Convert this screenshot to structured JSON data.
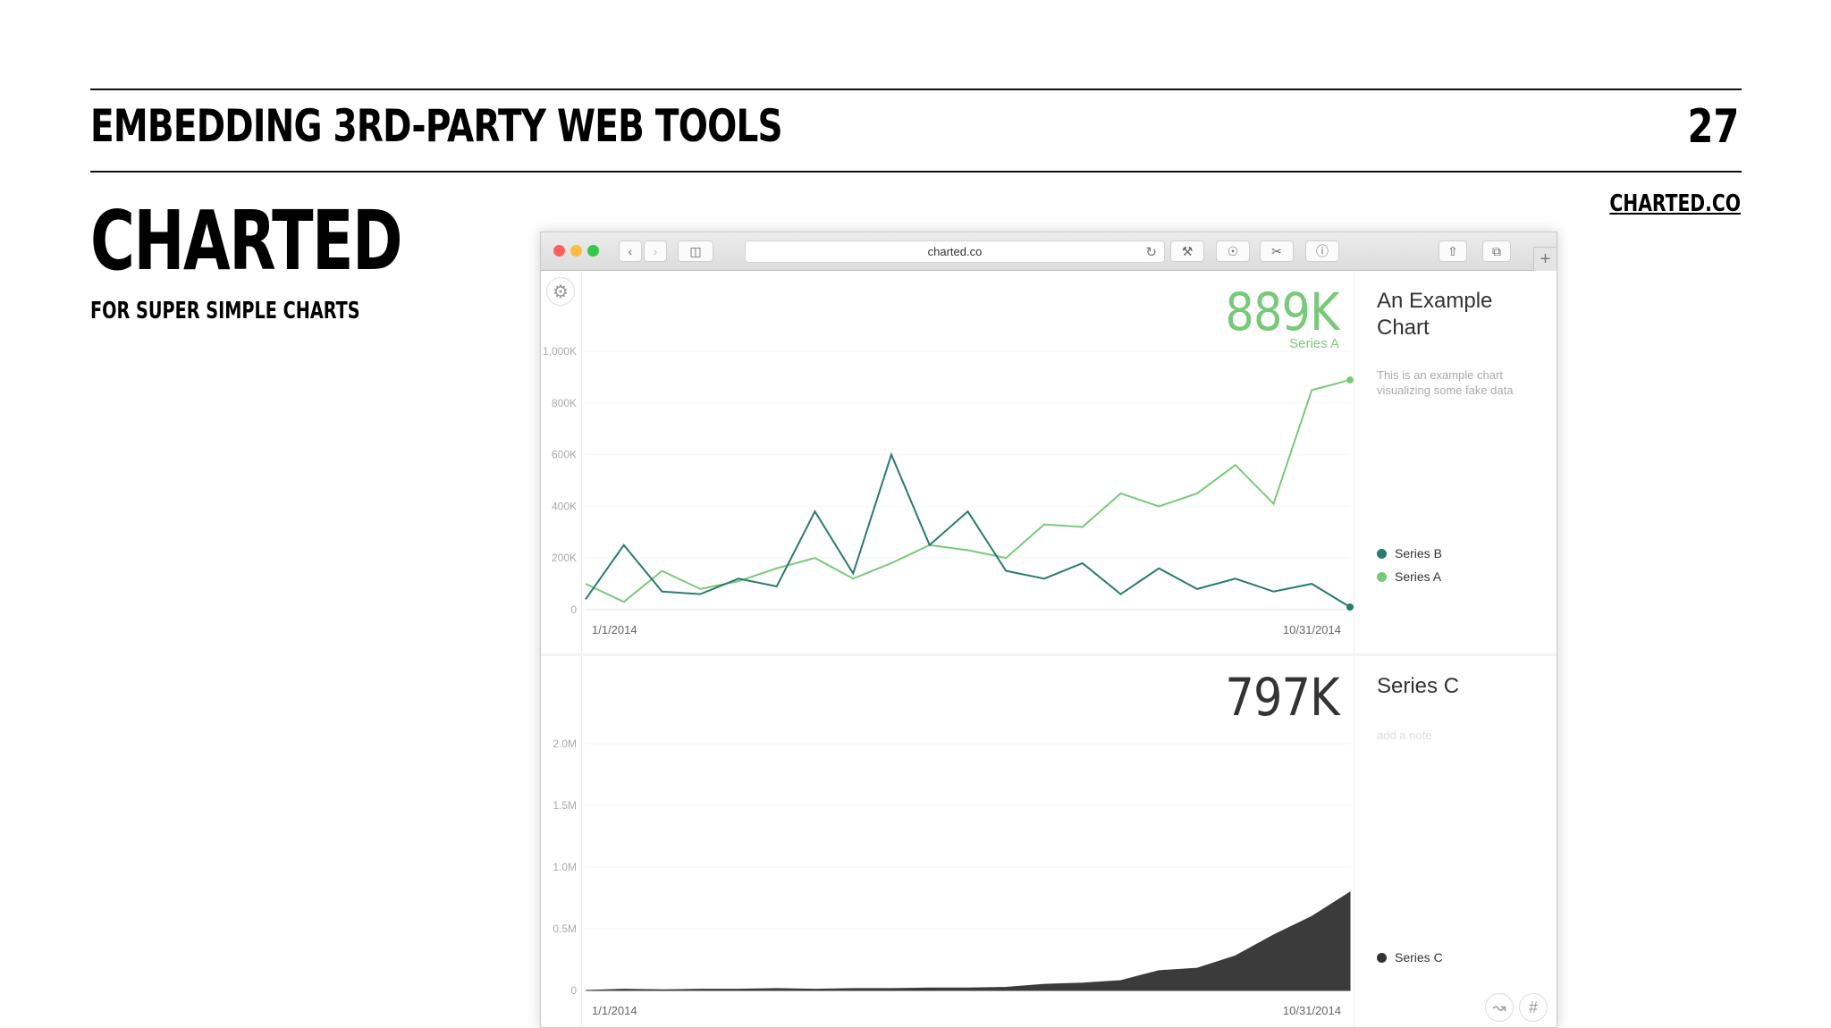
{
  "slide": {
    "title": "EMBEDDING 3RD-PARTY WEB TOOLS",
    "number": "27",
    "link": "CHARTED.CO",
    "heading": "CHARTED",
    "subheading": "FOR SUPER SIMPLE CHARTS"
  },
  "browser": {
    "url": "charted.co"
  },
  "chart_top": {
    "big_value": "889K",
    "big_series": "Series A",
    "title": "An Example Chart",
    "description": "This is an example chart visualizing some fake data",
    "x_start": "1/1/2014",
    "x_end": "10/31/2014"
  },
  "chart_bottom": {
    "big_value": "797K",
    "title": "Series C",
    "note_placeholder": "add a note",
    "x_start": "1/1/2014",
    "x_end": "10/31/2014"
  },
  "colors": {
    "series_a": "#79c97a",
    "series_b": "#2a7a6e",
    "series_c": "#3b3b3b"
  },
  "chart_data": [
    {
      "type": "line",
      "x": [
        "1/1/2014",
        "1/15/2014",
        "2/1/2014",
        "2/15/2014",
        "3/1/2014",
        "3/15/2014",
        "4/1/2014",
        "4/15/2014",
        "5/1/2014",
        "5/15/2014",
        "6/1/2014",
        "6/15/2014",
        "7/1/2014",
        "7/15/2014",
        "8/1/2014",
        "8/15/2014",
        "9/1/2014",
        "9/15/2014",
        "10/1/2014",
        "10/15/2014",
        "10/31/2014"
      ],
      "series": [
        {
          "name": "Series B",
          "values": [
            40,
            250,
            70,
            60,
            120,
            90,
            380,
            140,
            600,
            250,
            380,
            150,
            120,
            180,
            60,
            160,
            80,
            120,
            70,
            100,
            10
          ]
        },
        {
          "name": "Series A",
          "values": [
            100,
            30,
            150,
            80,
            110,
            160,
            200,
            120,
            180,
            250,
            230,
            200,
            330,
            320,
            450,
            400,
            450,
            560,
            410,
            850,
            889
          ]
        }
      ],
      "yticks": [
        "0",
        "200K",
        "400K",
        "600K",
        "800K",
        "1,000K"
      ],
      "ylim": [
        0,
        1000000
      ],
      "legend": "right"
    },
    {
      "type": "area",
      "x": [
        "1/1/2014",
        "1/15/2014",
        "2/1/2014",
        "2/15/2014",
        "3/1/2014",
        "3/15/2014",
        "4/1/2014",
        "4/15/2014",
        "5/1/2014",
        "5/15/2014",
        "6/1/2014",
        "6/15/2014",
        "7/1/2014",
        "7/15/2014",
        "8/1/2014",
        "8/15/2014",
        "9/1/2014",
        "9/15/2014",
        "10/1/2014",
        "10/15/2014",
        "10/31/2014"
      ],
      "series": [
        {
          "name": "Series C",
          "values": [
            0,
            10,
            5,
            10,
            10,
            15,
            10,
            15,
            15,
            20,
            20,
            25,
            50,
            60,
            80,
            160,
            180,
            280,
            450,
            600,
            797
          ]
        }
      ],
      "yticks": [
        "0",
        "0.5M",
        "1.0M",
        "1.5M",
        "2.0M"
      ],
      "ylim": [
        0,
        2000000
      ],
      "legend": "right"
    }
  ]
}
